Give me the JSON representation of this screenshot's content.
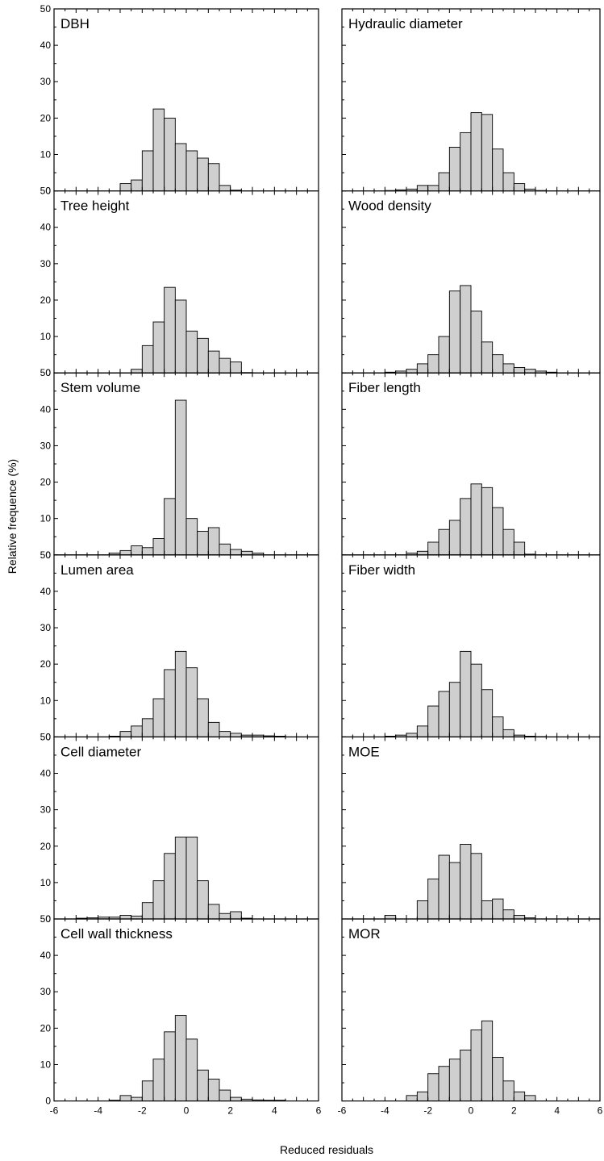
{
  "figure": {
    "ylabel": "Relative frequence (%)",
    "xlabel": "Reduced residuals"
  },
  "chart_data": [
    {
      "type": "bar",
      "title": "DBH",
      "xlim": [
        -6,
        6
      ],
      "ylim": [
        0,
        50
      ],
      "bin_width": 0.5,
      "x": [
        -2.75,
        -2.25,
        -1.75,
        -1.25,
        -0.75,
        -0.25,
        0.25,
        0.75,
        1.25,
        1.75,
        2.25
      ],
      "values": [
        2,
        3,
        11,
        22.5,
        20,
        13,
        11,
        9,
        7.5,
        1.5,
        0.2
      ]
    },
    {
      "type": "bar",
      "title": "Hydraulic diameter",
      "xlim": [
        -6,
        6
      ],
      "ylim": [
        0,
        50
      ],
      "bin_width": 0.5,
      "x": [
        -3.75,
        -3.25,
        -2.75,
        -2.25,
        -1.75,
        -1.25,
        -0.75,
        -0.25,
        0.25,
        0.75,
        1.25,
        1.75,
        2.25,
        2.75,
        3.25
      ],
      "values": [
        0.1,
        0.3,
        0.5,
        1.5,
        1.5,
        5,
        12,
        16,
        21.5,
        21,
        11.5,
        5,
        2,
        0.5,
        0.1
      ]
    },
    {
      "type": "bar",
      "title": "Tree height",
      "xlim": [
        -6,
        6
      ],
      "ylim": [
        0,
        50
      ],
      "bin_width": 0.5,
      "x": [
        -2.25,
        -1.75,
        -1.25,
        -0.75,
        -0.25,
        0.25,
        0.75,
        1.25,
        1.75,
        2.25,
        2.75
      ],
      "values": [
        1,
        7.5,
        14,
        23.5,
        20,
        11.5,
        9.5,
        6,
        4,
        3,
        0.1
      ]
    },
    {
      "type": "bar",
      "title": "Wood density",
      "xlim": [
        -6,
        6
      ],
      "ylim": [
        0,
        50
      ],
      "bin_width": 0.5,
      "x": [
        -3.75,
        -3.25,
        -2.75,
        -2.25,
        -1.75,
        -1.25,
        -0.75,
        -0.25,
        0.25,
        0.75,
        1.25,
        1.75,
        2.25,
        2.75,
        3.25,
        3.75
      ],
      "values": [
        0.2,
        0.5,
        1,
        2.5,
        5,
        10,
        22.5,
        24,
        17,
        8.5,
        5,
        2.5,
        1.5,
        1,
        0.5,
        0.2
      ]
    },
    {
      "type": "bar",
      "title": "Stem volume",
      "xlim": [
        -6,
        6
      ],
      "ylim": [
        0,
        50
      ],
      "bin_width": 0.5,
      "x": [
        -3.25,
        -2.75,
        -2.25,
        -1.75,
        -1.25,
        -0.75,
        -0.25,
        0.25,
        0.75,
        1.25,
        1.75,
        2.25,
        2.75,
        3.25
      ],
      "values": [
        0.5,
        1.2,
        2.5,
        2,
        4.5,
        15.5,
        42.5,
        10,
        6.5,
        7.5,
        3,
        1.5,
        1,
        0.5
      ]
    },
    {
      "type": "bar",
      "title": "Fiber length",
      "xlim": [
        -6,
        6
      ],
      "ylim": [
        0,
        50
      ],
      "bin_width": 0.5,
      "x": [
        -2.75,
        -2.25,
        -1.75,
        -1.25,
        -0.75,
        -0.25,
        0.25,
        0.75,
        1.25,
        1.75,
        2.25,
        2.75
      ],
      "values": [
        0.5,
        1,
        3.5,
        7,
        9.5,
        15.5,
        19.5,
        18.5,
        13,
        7,
        3.5,
        0.2
      ]
    },
    {
      "type": "bar",
      "title": "Lumen area",
      "xlim": [
        -6,
        6
      ],
      "ylim": [
        0,
        50
      ],
      "bin_width": 0.5,
      "x": [
        -3.25,
        -2.75,
        -2.25,
        -1.75,
        -1.25,
        -0.75,
        -0.25,
        0.25,
        0.75,
        1.25,
        1.75,
        2.25,
        2.75,
        3.25,
        3.75,
        4.25
      ],
      "values": [
        0.2,
        1.5,
        3,
        5,
        10.5,
        18.5,
        23.5,
        19,
        10.5,
        4,
        1.5,
        1,
        0.5,
        0.5,
        0.3,
        0.2
      ]
    },
    {
      "type": "bar",
      "title": "Fiber width",
      "xlim": [
        -6,
        6
      ],
      "ylim": [
        0,
        50
      ],
      "bin_width": 0.5,
      "x": [
        -3.75,
        -3.25,
        -2.75,
        -2.25,
        -1.75,
        -1.25,
        -0.75,
        -0.25,
        0.25,
        0.75,
        1.25,
        1.75,
        2.25,
        2.75,
        3.25
      ],
      "values": [
        0.2,
        0.5,
        1,
        3,
        8.5,
        12.5,
        15,
        23.5,
        20,
        13,
        5.5,
        2,
        0.5,
        0.2,
        0.1
      ]
    },
    {
      "type": "bar",
      "title": "Cell diameter",
      "xlim": [
        -6,
        6
      ],
      "ylim": [
        0,
        50
      ],
      "bin_width": 0.5,
      "x": [
        -4.75,
        -4.25,
        -3.75,
        -3.25,
        -2.75,
        -2.25,
        -1.75,
        -1.25,
        -0.75,
        -0.25,
        0.25,
        0.75,
        1.25,
        1.75,
        2.25,
        2.75
      ],
      "values": [
        0.2,
        0.3,
        0.5,
        0.5,
        1,
        0.8,
        4.5,
        10.5,
        18,
        22.5,
        22.5,
        10.5,
        4,
        1.5,
        2,
        0.2
      ]
    },
    {
      "type": "bar",
      "title": "MOE",
      "xlim": [
        -6,
        6
      ],
      "ylim": [
        0,
        50
      ],
      "bin_width": 0.5,
      "x": [
        -3.75,
        -2.25,
        -1.75,
        -1.25,
        -0.75,
        -0.25,
        0.25,
        0.75,
        1.25,
        1.75,
        2.25,
        2.75
      ],
      "values": [
        1,
        5,
        11,
        17.5,
        15.5,
        20.5,
        18,
        5,
        5.5,
        2.5,
        1,
        0.3
      ]
    },
    {
      "type": "bar",
      "title": "Cell wall thickness",
      "xlim": [
        -6,
        6
      ],
      "ylim": [
        0,
        50
      ],
      "bin_width": 0.5,
      "x": [
        -3.25,
        -2.75,
        -2.25,
        -1.75,
        -1.25,
        -0.75,
        -0.25,
        0.25,
        0.75,
        1.25,
        1.75,
        2.25,
        2.75,
        3.25,
        3.75,
        4.25
      ],
      "values": [
        0.2,
        1.5,
        1,
        5.5,
        11.5,
        19,
        23.5,
        17,
        8.5,
        6,
        3,
        1,
        0.5,
        0.3,
        0.2,
        0.2
      ]
    },
    {
      "type": "bar",
      "title": "MOR",
      "xlim": [
        -6,
        6
      ],
      "ylim": [
        0,
        50
      ],
      "bin_width": 0.5,
      "x": [
        -2.75,
        -2.25,
        -1.75,
        -1.25,
        -0.75,
        -0.25,
        0.25,
        0.75,
        1.25,
        1.75,
        2.25,
        2.75
      ],
      "values": [
        1.5,
        2.5,
        7.5,
        9.5,
        11.5,
        14,
        19.5,
        22,
        12,
        5.5,
        2.5,
        1.5
      ]
    }
  ]
}
